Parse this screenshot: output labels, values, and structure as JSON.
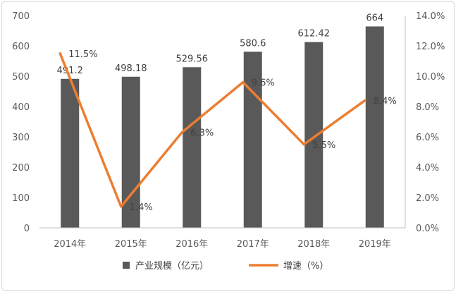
{
  "chart_data": {
    "type": "bar+line",
    "categories": [
      "2014年",
      "2015年",
      "2016年",
      "2017年",
      "2018年",
      "2019年"
    ],
    "series": [
      {
        "name": "产业规模（亿元）",
        "type": "bar",
        "axis": "left",
        "color": "#595959",
        "values": [
          491.2,
          498.18,
          529.56,
          580.6,
          612.42,
          664
        ],
        "labels": [
          "491.2",
          "498.18",
          "529.56",
          "580.6",
          "612.42",
          "664"
        ]
      },
      {
        "name": "增速（%）",
        "type": "line",
        "axis": "right",
        "color": "#ed7d31",
        "values": [
          11.5,
          1.4,
          6.3,
          9.6,
          5.5,
          8.4
        ],
        "labels": [
          "11.5%",
          "1.4%",
          "6.3%",
          "9.6%",
          "5.5%",
          "8.4%"
        ]
      }
    ],
    "y_left": {
      "min": 0,
      "max": 700,
      "ticks": [
        "0",
        "100",
        "200",
        "300",
        "400",
        "500",
        "600",
        "700"
      ]
    },
    "y_right": {
      "min": 0,
      "max": 14,
      "ticks": [
        "0.0%",
        "2.0%",
        "4.0%",
        "6.0%",
        "8.0%",
        "10.0%",
        "12.0%",
        "14.0%"
      ]
    },
    "grid": false,
    "legend_position": "bottom"
  }
}
